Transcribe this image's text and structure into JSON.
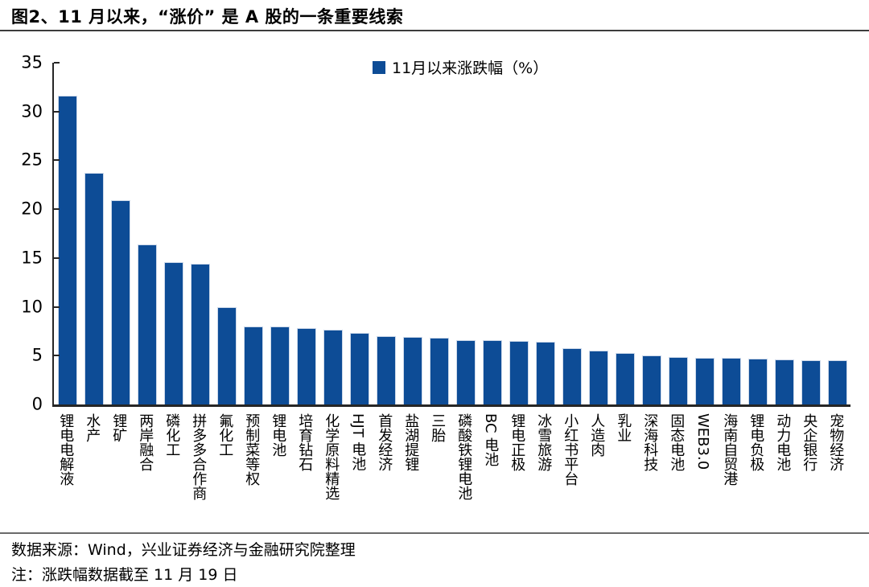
{
  "page": {
    "title": "图2、11 月以来，“涨价” 是 A 股的一条重要线索"
  },
  "footer": {
    "source": "数据来源：Wind，兴业证券经济与金融研究院整理",
    "note": "注：涨跌幅数据截至 11 月 19 日"
  },
  "chart_data": {
    "type": "bar",
    "title": "图2、11 月以来，“涨价” 是 A 股的一条重要线索",
    "legend": "11月以来涨跌幅（%）",
    "categories": [
      "锂电电解液",
      "水产",
      "锂矿",
      "两岸融合",
      "磷化工",
      "拼多多合作商",
      "氟化工",
      "预制菜等权",
      "锂电池",
      "培育钻石",
      "化学原料精选",
      "HJT 电池",
      "首发经济",
      "盐湖提锂",
      "三胎",
      "磷酸铁锂电池",
      "BC 电池",
      "锂电正极",
      "冰雪旅游",
      "小红书平台",
      "人造肉",
      "乳业",
      "深海科技",
      "固态电池",
      "WEB3.0",
      "海南自贸港",
      "锂电负极",
      "动力电池",
      "央企银行",
      "宠物经济"
    ],
    "values": [
      31.6,
      23.7,
      20.9,
      16.4,
      14.6,
      14.4,
      10.0,
      8.0,
      8.0,
      7.8,
      7.7,
      7.3,
      7.0,
      6.9,
      6.8,
      6.6,
      6.6,
      6.5,
      6.4,
      5.8,
      5.5,
      5.3,
      5.0,
      4.9,
      4.8,
      4.8,
      4.7,
      4.6,
      4.5,
      4.5
    ],
    "xlabel": "",
    "ylabel": "",
    "ylim": [
      0,
      35
    ],
    "y_ticks": [
      0,
      5,
      10,
      15,
      20,
      25,
      30,
      35
    ],
    "bar_color": "#0D4C96",
    "axis_color": "#262626",
    "grid": false,
    "legend_position": "top-center"
  }
}
